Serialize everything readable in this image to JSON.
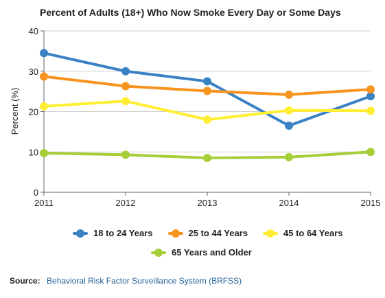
{
  "chart_data": {
    "type": "line",
    "title": "Percent of Adults (18+) Who Now Smoke Every Day or Some Days",
    "xlabel": "",
    "ylabel": "Percent (%)",
    "x": [
      2011,
      2012,
      2013,
      2014,
      2015
    ],
    "ylim": [
      0,
      40
    ],
    "yticks": [
      0,
      10,
      20,
      30,
      40
    ],
    "grid": true,
    "legend_position": "bottom",
    "series": [
      {
        "name": "18 to 24 Years",
        "color": "#3a82c4",
        "values": [
          34.5,
          30.0,
          27.5,
          16.5,
          23.8
        ]
      },
      {
        "name": "25 to 44 Years",
        "color": "#f7931e",
        "values": [
          28.7,
          26.3,
          25.1,
          24.2,
          25.5
        ]
      },
      {
        "name": "45 to 64 Years",
        "color": "#ffee33",
        "values": [
          21.3,
          22.6,
          18.0,
          20.3,
          20.2
        ]
      },
      {
        "name": "65 Years and Older",
        "color": "#a6ce39",
        "values": [
          9.7,
          9.3,
          8.5,
          8.7,
          10.0
        ]
      }
    ]
  },
  "source": {
    "label": "Source:",
    "text": "Behavioral Risk Factor Surveillance System (BRFSS)"
  }
}
